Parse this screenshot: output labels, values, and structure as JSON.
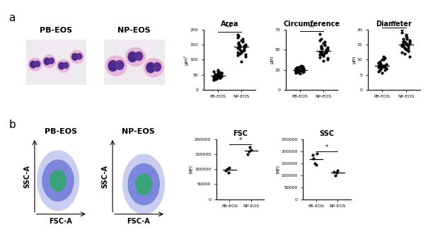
{
  "panel_labels": [
    "a",
    "b"
  ],
  "micrographs": {
    "labels": [
      "PB-EOS",
      "NP-EOS"
    ]
  },
  "flow_plots": {
    "labels": [
      "PB-EOS",
      "NP-EOS"
    ],
    "x_label": "FSC-A",
    "y_label": "SSC-A"
  },
  "chart_data": [
    {
      "type": "scatter",
      "panel": "a",
      "title": "Area",
      "y_label": "µm²",
      "categories": [
        "PB-EOS",
        "NP-EOS"
      ],
      "values": [
        [
          45,
          52,
          38,
          60,
          42,
          48,
          55,
          35,
          50,
          41,
          47,
          58,
          39,
          44,
          62,
          36,
          49,
          53,
          40,
          46,
          57,
          43,
          51,
          37,
          65,
          48,
          42,
          54,
          33,
          45
        ],
        [
          140,
          155,
          120,
          165,
          130,
          145,
          110,
          175,
          150,
          135,
          125,
          160,
          142,
          118,
          185,
          138,
          148,
          128,
          170,
          132,
          152,
          115,
          158,
          143,
          95,
          162,
          137,
          146,
          124,
          180
        ]
      ],
      "means": [
        47,
        143
      ],
      "significance": "**",
      "ylim": [
        0,
        200
      ],
      "yticks": [
        0,
        50,
        100,
        150,
        200
      ],
      "color": "#000000"
    },
    {
      "type": "scatter",
      "panel": "a",
      "title": "Circumference",
      "y_label": "µm",
      "categories": [
        "PB-EOS",
        "NP-EOS"
      ],
      "values": [
        [
          24,
          27,
          22,
          29,
          25,
          23,
          26,
          21,
          28,
          24,
          25,
          30,
          22,
          26,
          23,
          27,
          24,
          20,
          28,
          25,
          23,
          26,
          22,
          27,
          24,
          25,
          29,
          23,
          26,
          24
        ],
        [
          48,
          52,
          44,
          58,
          46,
          50,
          40,
          62,
          54,
          47,
          42,
          56,
          49,
          38,
          70,
          45,
          51,
          43,
          60,
          48,
          53,
          41,
          55,
          46,
          36,
          57,
          47,
          50,
          44,
          64
        ]
      ],
      "means": [
        25,
        49
      ],
      "significance": "**",
      "ylim": [
        0,
        75
      ],
      "yticks": [
        0,
        25,
        50,
        75
      ],
      "color": "#000000"
    },
    {
      "type": "scatter",
      "panel": "a",
      "title": "Diameter",
      "y_label": "µm",
      "categories": [
        "PB-EOS",
        "NP-EOS"
      ],
      "values": [
        [
          8,
          9,
          7,
          10,
          8,
          7.5,
          8.5,
          6,
          9.5,
          7,
          8,
          11,
          6.5,
          8.5,
          7.5,
          9,
          8,
          5.5,
          10,
          8,
          7,
          9,
          6.5,
          8.5,
          7.5,
          8,
          10.5,
          7,
          9,
          8
        ],
        [
          15,
          16,
          14,
          18,
          15,
          13,
          16.5,
          19,
          14.5,
          12,
          15.5,
          17,
          14,
          11,
          20,
          15,
          16,
          13.5,
          17.5,
          14.5,
          15.5,
          12.5,
          16,
          14,
          18.5,
          15,
          13,
          16,
          14.5,
          17
        ]
      ],
      "means": [
        8,
        15
      ],
      "significance": "**",
      "ylim": [
        0,
        20
      ],
      "yticks": [
        0,
        5,
        10,
        15,
        20
      ],
      "color": "#000000"
    },
    {
      "type": "scatter",
      "panel": "b",
      "title": "FSC",
      "y_label": "MFI",
      "categories": [
        "PB-EOS",
        "NP-EOS"
      ],
      "values": [
        [
          95000,
          100000,
          90000,
          105000
        ],
        [
          150000,
          160000,
          175000,
          165000
        ]
      ],
      "means": [
        97500,
        162500
      ],
      "significance": "*",
      "ylim": [
        0,
        200000
      ],
      "yticks": [
        0,
        50000,
        100000,
        150000,
        200000
      ],
      "color": "#000000"
    },
    {
      "type": "scatter",
      "panel": "b",
      "title": "SSC",
      "y_label": "MFI",
      "categories": [
        "PB-EOS",
        "NP-EOS"
      ],
      "values": [
        [
          185000,
          170000,
          150000,
          145000,
          190000
        ],
        [
          115000,
          100000,
          110000,
          120000
        ]
      ],
      "means": [
        168000,
        111250
      ],
      "significance": "*",
      "ylim": [
        0,
        250000
      ],
      "yticks": [
        0,
        50000,
        100000,
        150000,
        200000,
        250000
      ],
      "color": "#000000"
    }
  ]
}
